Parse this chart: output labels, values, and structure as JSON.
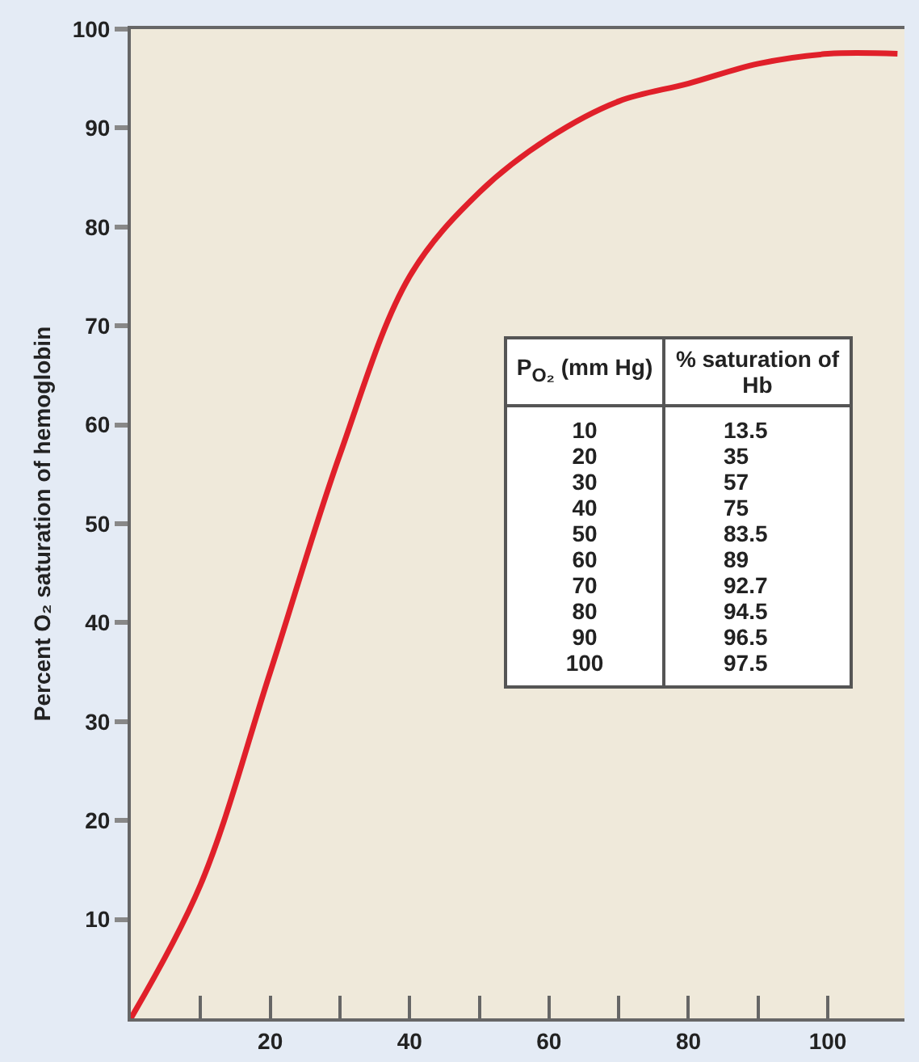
{
  "chart_data": {
    "type": "line",
    "ylabel": "Percent O₂ saturation of hemoglobin",
    "x": [
      0,
      10,
      20,
      30,
      40,
      50,
      60,
      70,
      80,
      90,
      100,
      110
    ],
    "values": [
      0,
      13.5,
      35,
      57,
      75,
      83.5,
      89,
      92.7,
      94.5,
      96.5,
      97.5,
      97.5
    ],
    "color": "#e0202a",
    "annotations": [
      "P$_{O₂}$ (mm Hg)",
      "% saturation of Hb",
      "10",
      "13.5",
      "20",
      "35",
      "30",
      "57",
      "40",
      "75",
      "50",
      "83.5",
      "60",
      "89",
      "70",
      "92.7",
      "80",
      "94.5",
      "90",
      "96.5",
      "100",
      "97.5"
    ],
    "xlim": [
      0,
      111
    ],
    "xticks": [
      {
        "value": 10,
        "label": null
      },
      20,
      {
        "value": 30,
        "label": null
      },
      40,
      {
        "value": 50,
        "label": null
      },
      60,
      {
        "value": 70,
        "label": null
      },
      80,
      {
        "value": 90,
        "label": null
      },
      100
    ],
    "ylim": [
      0,
      100
    ],
    "yticks": [
      10,
      20,
      30,
      40,
      50,
      60,
      70,
      80,
      90,
      100
    ],
    "grid": false,
    "marker": "none",
    "line_style": "solid"
  }
}
